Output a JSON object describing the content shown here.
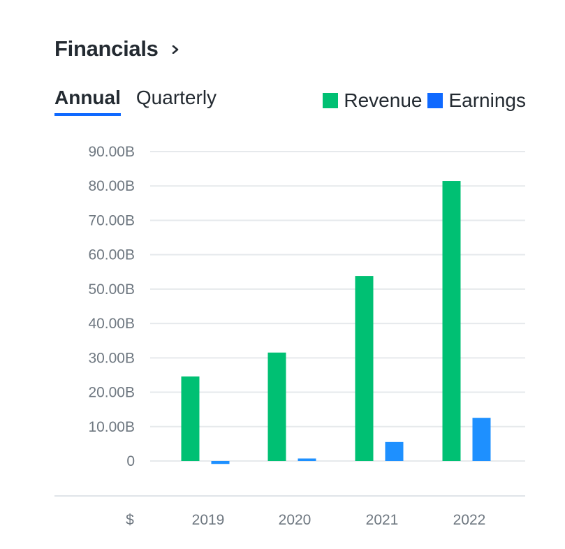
{
  "header": {
    "title": "Financials"
  },
  "tabs": [
    {
      "label": "Annual",
      "active": true
    },
    {
      "label": "Quarterly",
      "active": false
    }
  ],
  "colors": {
    "revenue": "#00c073",
    "earnings": "#1e90ff",
    "earnings_legend": "#0f69ff",
    "tab_underline": "#0f69ff"
  },
  "chart_data": {
    "type": "bar",
    "categories": [
      "2019",
      "2020",
      "2021",
      "2022"
    ],
    "series": [
      {
        "name": "Revenue",
        "values": [
          24.58,
          31.54,
          53.82,
          81.46
        ]
      },
      {
        "name": "Earnings",
        "values": [
          -0.86,
          0.72,
          5.52,
          12.56
        ]
      }
    ],
    "ylim": [
      0,
      90
    ],
    "yticks": [
      0,
      10,
      20,
      30,
      40,
      50,
      60,
      70,
      80,
      90
    ],
    "ytick_labels": [
      "0",
      "10.00B",
      "20.00B",
      "30.00B",
      "40.00B",
      "50.00B",
      "60.00B",
      "70.00B",
      "80.00B",
      "90.00B"
    ],
    "currency_label": "$",
    "legend_position": "top-right",
    "grid": true
  }
}
